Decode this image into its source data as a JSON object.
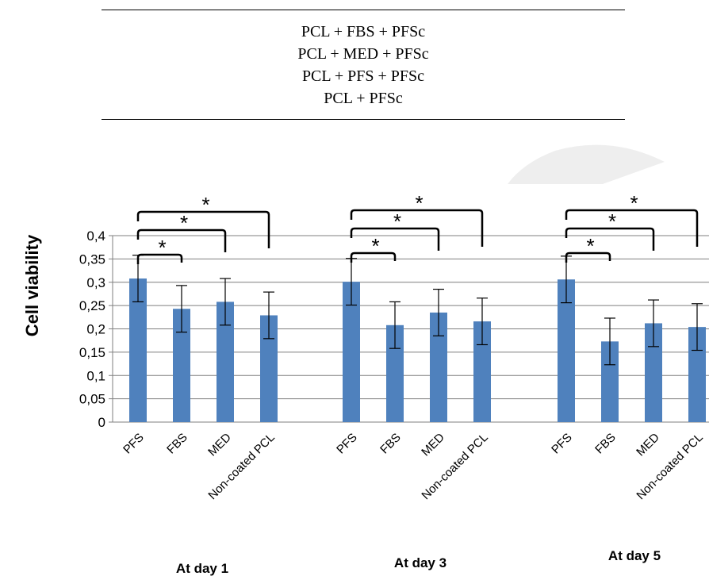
{
  "legend_table": {
    "rows": [
      "PCL + FBS + PFSc",
      "PCL + MED + PFSc",
      "PCL + PFS + PFSc",
      "PCL + PFSc"
    ]
  },
  "colors": {
    "bar": "#4f81bd",
    "grid": "#7f7f7f",
    "watermark": "#eeeeee"
  },
  "chart_data": {
    "type": "bar",
    "ylabel": "Cell viability",
    "xlabel": "",
    "ylim": [
      0,
      0.4
    ],
    "ytick_labels": [
      "0",
      "0,05",
      "0,1",
      "0,15",
      "0,2",
      "0,25",
      "0,3",
      "0,35",
      "0,4"
    ],
    "grid": true,
    "groups": [
      {
        "label": "At day 1",
        "categories": [
          "PFS",
          "FBS",
          "MED",
          "Non-coated PCL"
        ],
        "values": [
          0.308,
          0.243,
          0.258,
          0.229
        ],
        "errors": [
          0.05,
          0.05,
          0.05,
          0.05
        ],
        "significance": [
          {
            "from": "PFS",
            "to": "FBS",
            "label": "*"
          },
          {
            "from": "PFS",
            "to": "MED",
            "label": "*"
          },
          {
            "from": "PFS",
            "to": "Non-coated PCL",
            "label": "*"
          }
        ]
      },
      {
        "label": "At day 3",
        "categories": [
          "PFS",
          "FBS",
          "MED",
          "Non-coated PCL"
        ],
        "values": [
          0.301,
          0.208,
          0.235,
          0.216
        ],
        "errors": [
          0.05,
          0.05,
          0.05,
          0.05
        ],
        "significance": [
          {
            "from": "PFS",
            "to": "FBS",
            "label": "*"
          },
          {
            "from": "PFS",
            "to": "MED",
            "label": "*"
          },
          {
            "from": "PFS",
            "to": "Non-coated PCL",
            "label": "*"
          }
        ]
      },
      {
        "label": "At day 5",
        "categories": [
          "PFS",
          "FBS",
          "MED",
          "Non-coated PCL"
        ],
        "values": [
          0.306,
          0.173,
          0.212,
          0.204
        ],
        "errors": [
          0.05,
          0.05,
          0.05,
          0.05
        ],
        "significance": [
          {
            "from": "PFS",
            "to": "FBS",
            "label": "*"
          },
          {
            "from": "PFS",
            "to": "MED",
            "label": "*"
          },
          {
            "from": "PFS",
            "to": "Non-coated PCL",
            "label": "*"
          }
        ]
      }
    ]
  }
}
